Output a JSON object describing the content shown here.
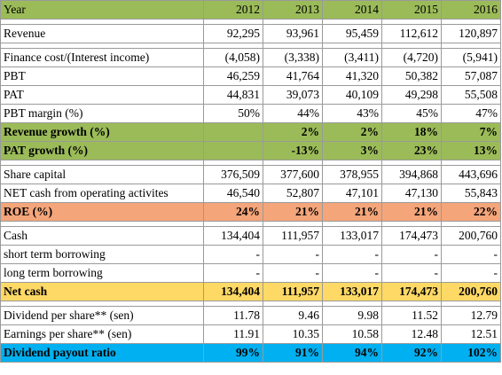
{
  "header": {
    "label": "Year",
    "years": [
      "2012",
      "2013",
      "2014",
      "2015",
      "2016"
    ]
  },
  "groups": [
    {
      "rows": [
        {
          "label": "Revenue",
          "values": [
            "92,295",
            "93,961",
            "95,459",
            "112,612",
            "120,897"
          ],
          "style": ""
        }
      ]
    },
    {
      "rows": [
        {
          "label": "Finance cost/(Interest income)",
          "values": [
            "(4,058)",
            "(3,338)",
            "(3,411)",
            "(4,720)",
            "(5,941)"
          ],
          "style": ""
        },
        {
          "label": "PBT",
          "values": [
            "46,259",
            "41,764",
            "41,320",
            "50,382",
            "57,087"
          ],
          "style": ""
        },
        {
          "label": "PAT",
          "values": [
            "44,831",
            "39,073",
            "40,109",
            "49,298",
            "55,508"
          ],
          "style": ""
        },
        {
          "label": "PBT margin (%)",
          "values": [
            "50%",
            "44%",
            "43%",
            "45%",
            "47%"
          ],
          "style": ""
        },
        {
          "label": "Revenue growth (%)",
          "values": [
            "",
            "2%",
            "2%",
            "18%",
            "7%"
          ],
          "style": "green"
        },
        {
          "label": "PAT growth (%)",
          "values": [
            "",
            "-13%",
            "3%",
            "23%",
            "13%"
          ],
          "style": "green"
        }
      ]
    },
    {
      "rows": [
        {
          "label": "Share capital",
          "values": [
            "376,509",
            "377,600",
            "378,955",
            "394,868",
            "443,696"
          ],
          "style": ""
        },
        {
          "label": "NET cash from operating activites",
          "values": [
            "46,540",
            "52,807",
            "47,101",
            "47,130",
            "55,843"
          ],
          "style": ""
        },
        {
          "label": "ROE (%)",
          "values": [
            "24%",
            "21%",
            "21%",
            "21%",
            "22%"
          ],
          "style": "orange"
        }
      ]
    },
    {
      "rows": [
        {
          "label": "Cash",
          "values": [
            "134,404",
            "111,957",
            "133,017",
            "174,473",
            "200,760"
          ],
          "style": ""
        },
        {
          "label": "short term borrowing",
          "values": [
            "-",
            "-",
            "-",
            "-",
            "-"
          ],
          "style": ""
        },
        {
          "label": "long term borrowing",
          "values": [
            "-",
            "-",
            "-",
            "-",
            "-"
          ],
          "style": ""
        },
        {
          "label": "Net cash",
          "values": [
            "134,404",
            "111,957",
            "133,017",
            "174,473",
            "200,760"
          ],
          "style": "yellow"
        }
      ]
    },
    {
      "rows": [
        {
          "label": "Dividend per share** (sen)",
          "values": [
            "11.78",
            "9.46",
            "9.98",
            "11.52",
            "12.79"
          ],
          "style": ""
        },
        {
          "label": "Earnings per share** (sen)",
          "values": [
            "11.91",
            "10.35",
            "10.58",
            "12.48",
            "12.51"
          ],
          "style": ""
        },
        {
          "label": "Dividend payout ratio",
          "values": [
            "99%",
            "91%",
            "94%",
            "92%",
            "102%"
          ],
          "style": "blue"
        }
      ]
    }
  ]
}
